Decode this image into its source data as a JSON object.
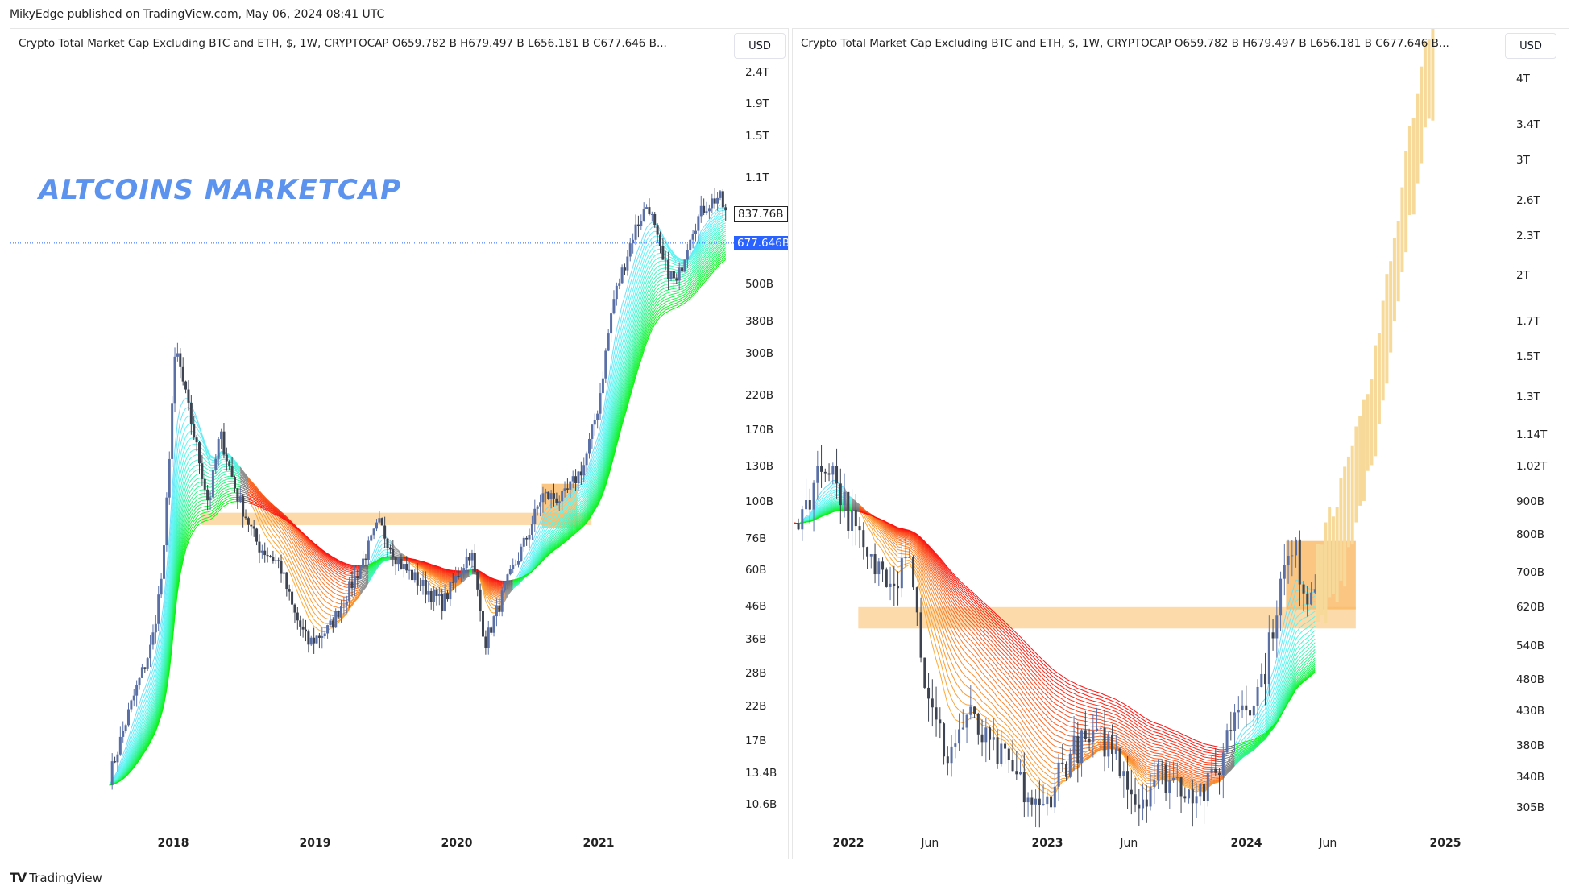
{
  "published": "MikyEdge published on TradingView.com, May 06, 2024 08:41 UTC",
  "brand": "TradingView",
  "brand_icon": "tradingview-logo-icon",
  "colors": {
    "accent": "#2962ff",
    "title": "#5b93ee",
    "band": "#fdd49a",
    "box": "#f9b862",
    "projection": "#f7d99a",
    "candle_up": "#5a6fa6",
    "candle_down": "#3d4350"
  },
  "panels": [
    {
      "legend": "Crypto Total Market Cap Excluding BTC and ETH, $, 1W, CRYPTOCAP  O659.782 B  H679.497 B  L656.181 B  C677.646 B...",
      "currency": "USD",
      "title": "ALTCOINS MARKETCAP",
      "price_labels": [
        "2.4T",
        "1.9T",
        "1.5T",
        "1.1T",
        "500B",
        "380B",
        "300B",
        "220B",
        "170B",
        "130B",
        "100B",
        "76B",
        "60B",
        "46B",
        "36B",
        "28B",
        "22B",
        "17B",
        "13.4B",
        "10.6B"
      ],
      "crosshair_tag": "837.76B",
      "last_price_tag": "677.646B",
      "time_labels": [
        {
          "t": 2018,
          "label": "2018",
          "major": true
        },
        {
          "t": 2019,
          "label": "2019",
          "major": true
        },
        {
          "t": 2020,
          "label": "2020",
          "major": true
        },
        {
          "t": 2021,
          "label": "2021",
          "major": true
        }
      ]
    },
    {
      "legend": "Crypto Total Market Cap Excluding BTC and ETH, $, 1W, CRYPTOCAP  O659.782 B  H679.497 B  L656.181 B  C677.646 B...",
      "currency": "USD",
      "price_labels": [
        "4T",
        "3.4T",
        "3T",
        "2.6T",
        "2.3T",
        "2T",
        "1.7T",
        "1.5T",
        "1.3T",
        "1.14T",
        "1.02T",
        "900B",
        "800B",
        "700B",
        "620B",
        "540B",
        "480B",
        "430B",
        "380B",
        "340B",
        "305B"
      ],
      "time_labels": [
        {
          "t": 2022,
          "label": "2022",
          "major": true
        },
        {
          "t": 2022.41,
          "label": "Jun",
          "major": false
        },
        {
          "t": 2023,
          "label": "2023",
          "major": true
        },
        {
          "t": 2023.41,
          "label": "Jun",
          "major": false
        },
        {
          "t": 2024,
          "label": "2024",
          "major": true
        },
        {
          "t": 2024.41,
          "label": "Jun",
          "major": false
        },
        {
          "t": 2025,
          "label": "2025",
          "major": true
        }
      ]
    }
  ],
  "chart_data": [
    {
      "type": "candlestick",
      "scale": "log",
      "unit": "B USD",
      "closes": [
        [
          2017.55,
          13
        ],
        [
          2017.7,
          22
        ],
        [
          2017.85,
          35
        ],
        [
          2017.93,
          63
        ],
        [
          2018.0,
          240
        ],
        [
          2018.02,
          310
        ],
        [
          2018.1,
          206
        ],
        [
          2018.25,
          98
        ],
        [
          2018.33,
          166
        ],
        [
          2018.45,
          105
        ],
        [
          2018.6,
          72
        ],
        [
          2018.75,
          63
        ],
        [
          2018.85,
          44
        ],
        [
          2018.95,
          35
        ],
        [
          2019.1,
          39
        ],
        [
          2019.3,
          59
        ],
        [
          2019.45,
          85
        ],
        [
          2019.6,
          63
        ],
        [
          2019.75,
          54
        ],
        [
          2019.9,
          47
        ],
        [
          2020.1,
          70
        ],
        [
          2020.2,
          35
        ],
        [
          2020.35,
          54
        ],
        [
          2020.5,
          78
        ],
        [
          2020.6,
          105
        ],
        [
          2020.75,
          102
        ],
        [
          2020.9,
          132
        ],
        [
          2021.0,
          206
        ],
        [
          2021.1,
          436
        ],
        [
          2021.25,
          740
        ],
        [
          2021.35,
          915
        ],
        [
          2021.45,
          590
        ],
        [
          2021.55,
          500
        ],
        [
          2021.65,
          740
        ],
        [
          2021.75,
          890
        ],
        [
          2021.85,
          960
        ],
        [
          2021.9,
          838
        ]
      ],
      "support_band": {
        "from": 2018.2,
        "to": 2020.95,
        "low": 84,
        "high": 92
      },
      "breakout_box": {
        "from": 2020.6,
        "to": 2020.85,
        "low": 82,
        "high": 114
      },
      "current_price": 677.646
    },
    {
      "type": "candlestick",
      "scale": "log",
      "unit": "B USD",
      "closes": [
        [
          2021.73,
          830
        ],
        [
          2021.85,
          990
        ],
        [
          2021.9,
          1050
        ],
        [
          2022.0,
          860
        ],
        [
          2022.1,
          720
        ],
        [
          2022.25,
          700
        ],
        [
          2022.3,
          800
        ],
        [
          2022.35,
          580
        ],
        [
          2022.4,
          440
        ],
        [
          2022.5,
          367
        ],
        [
          2022.6,
          424
        ],
        [
          2022.7,
          380
        ],
        [
          2022.8,
          355
        ],
        [
          2022.9,
          318
        ],
        [
          2022.97,
          297
        ],
        [
          2023.05,
          345
        ],
        [
          2023.15,
          380
        ],
        [
          2023.3,
          387
        ],
        [
          2023.4,
          345
        ],
        [
          2023.45,
          308
        ],
        [
          2023.55,
          345
        ],
        [
          2023.7,
          330
        ],
        [
          2023.8,
          324
        ],
        [
          2023.85,
          345
        ],
        [
          2023.95,
          440
        ],
        [
          2024.05,
          454
        ],
        [
          2024.1,
          506
        ],
        [
          2024.15,
          626
        ],
        [
          2024.2,
          722
        ],
        [
          2024.25,
          748
        ],
        [
          2024.3,
          648
        ],
        [
          2024.35,
          677.646
        ]
      ],
      "projection": [
        [
          2024.36,
          677
        ],
        [
          2024.5,
          860
        ],
        [
          2024.6,
          1100
        ],
        [
          2024.7,
          1630
        ],
        [
          2024.8,
          2600
        ],
        [
          2024.9,
          4000
        ],
        [
          2024.95,
          4400
        ]
      ],
      "support_band": {
        "from": 2022.05,
        "to": 2024.55,
        "low": 575,
        "high": 620
      },
      "breakout_box": {
        "from": 2024.2,
        "to": 2024.55,
        "low": 615,
        "high": 783
      },
      "current_price": 677.646
    }
  ]
}
